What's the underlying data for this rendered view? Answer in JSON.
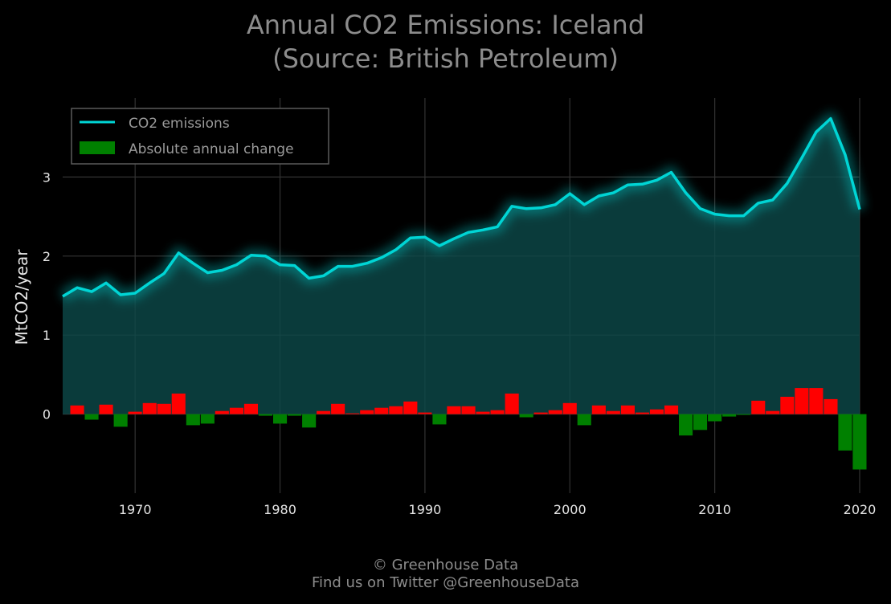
{
  "header": {
    "title_line1": "Annual CO2 Emissions: Iceland",
    "title_line2": "(Source: British Petroleum)"
  },
  "footer": {
    "credit_line1": "© Greenhouse Data",
    "credit_line2": "Find us on Twitter @GreenhouseData"
  },
  "colors": {
    "background": "#000000",
    "line": "#00d5d5",
    "area": "#0c4a4a",
    "increase": "#ff0000",
    "decrease": "#008000",
    "grid": "#333333"
  },
  "chart_data": {
    "type": "line",
    "title": "Annual CO2 Emissions: Iceland\n(Source: British Petroleum)",
    "xlabel": "",
    "ylabel": "MtCO2/year",
    "xlim": [
      1965,
      2020
    ],
    "ylim": [
      -1.0,
      4.0
    ],
    "x_ticks": [
      1970,
      1980,
      1990,
      2000,
      2010,
      2020
    ],
    "y_ticks": [
      0,
      1,
      2,
      3
    ],
    "grid": true,
    "legend_position": "top-left",
    "series": [
      {
        "name": "CO2 emissions",
        "kind": "line-area",
        "x": [
          1965,
          1966,
          1967,
          1968,
          1969,
          1970,
          1971,
          1972,
          1973,
          1974,
          1975,
          1976,
          1977,
          1978,
          1979,
          1980,
          1981,
          1982,
          1983,
          1984,
          1985,
          1986,
          1987,
          1988,
          1989,
          1990,
          1991,
          1992,
          1993,
          1994,
          1995,
          1996,
          1997,
          1998,
          1999,
          2000,
          2001,
          2002,
          2003,
          2004,
          2005,
          2006,
          2007,
          2008,
          2009,
          2010,
          2011,
          2012,
          2013,
          2014,
          2015,
          2016,
          2017,
          2018,
          2019,
          2020
        ],
        "values": [
          1.49,
          1.6,
          1.55,
          1.66,
          1.51,
          1.53,
          1.66,
          1.78,
          2.04,
          1.91,
          1.79,
          1.82,
          1.89,
          2.01,
          2.0,
          1.89,
          1.88,
          1.72,
          1.75,
          1.87,
          1.87,
          1.91,
          1.98,
          2.08,
          2.23,
          2.24,
          2.13,
          2.22,
          2.3,
          2.33,
          2.37,
          2.63,
          2.6,
          2.61,
          2.65,
          2.79,
          2.65,
          2.76,
          2.8,
          2.9,
          2.91,
          2.96,
          3.06,
          2.8,
          2.6,
          2.53,
          2.51,
          2.51,
          2.67,
          2.71,
          2.92,
          3.24,
          3.57,
          3.74,
          3.28,
          2.59
        ]
      },
      {
        "name": "Absolute annual change",
        "kind": "bar",
        "x": [
          1966,
          1967,
          1968,
          1969,
          1970,
          1971,
          1972,
          1973,
          1974,
          1975,
          1976,
          1977,
          1978,
          1979,
          1980,
          1981,
          1982,
          1983,
          1984,
          1985,
          1986,
          1987,
          1988,
          1989,
          1990,
          1991,
          1992,
          1993,
          1994,
          1995,
          1996,
          1997,
          1998,
          1999,
          2000,
          2001,
          2002,
          2003,
          2004,
          2005,
          2006,
          2007,
          2008,
          2009,
          2010,
          2011,
          2012,
          2013,
          2014,
          2015,
          2016,
          2017,
          2018,
          2019,
          2020
        ],
        "values": [
          0.11,
          -0.07,
          0.12,
          -0.16,
          0.03,
          0.14,
          0.13,
          0.26,
          -0.14,
          -0.12,
          0.04,
          0.08,
          0.13,
          -0.02,
          -0.12,
          -0.02,
          -0.17,
          0.04,
          0.13,
          0.01,
          0.05,
          0.08,
          0.1,
          0.16,
          0.02,
          -0.13,
          0.1,
          0.1,
          0.03,
          0.05,
          0.26,
          -0.04,
          0.02,
          0.05,
          0.14,
          -0.14,
          0.11,
          0.04,
          0.11,
          0.02,
          0.06,
          0.11,
          -0.27,
          -0.2,
          -0.09,
          -0.03,
          -0.01,
          0.17,
          0.04,
          0.22,
          0.33,
          0.33,
          0.19,
          -0.46,
          -0.7
        ]
      }
    ]
  }
}
